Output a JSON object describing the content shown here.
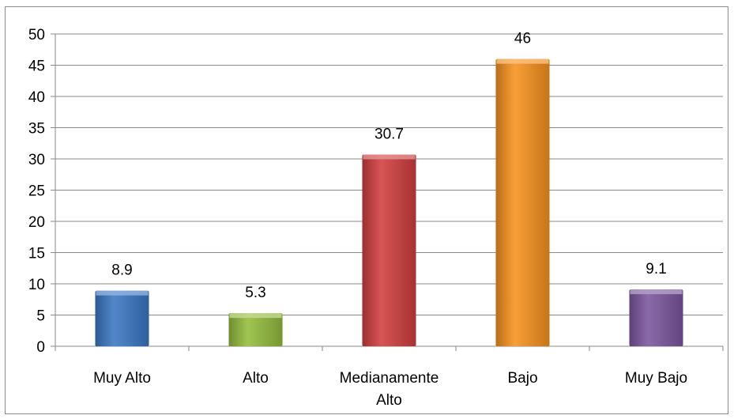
{
  "chart_data": {
    "type": "bar",
    "title": "",
    "xlabel": "",
    "ylabel": "",
    "categories": [
      "Muy Alto",
      "Alto",
      "Medianamente Alto",
      "Bajo",
      "Muy Bajo"
    ],
    "category_lines": [
      [
        "Muy Alto"
      ],
      [
        "Alto"
      ],
      [
        "Medianamente",
        "Alto"
      ],
      [
        "Bajo"
      ],
      [
        "Muy Bajo"
      ]
    ],
    "values": [
      8.9,
      5.3,
      30.7,
      46,
      9.1
    ],
    "data_labels": [
      "8.9",
      "5.3",
      "30.7",
      "46",
      "9.1"
    ],
    "colors": [
      "#3a78c4",
      "#94bd3c",
      "#d13e3e",
      "#f7921e",
      "#7b569e"
    ],
    "ylim": [
      0,
      50
    ],
    "yticks": [
      0,
      5,
      10,
      15,
      20,
      25,
      30,
      35,
      40,
      45,
      50
    ],
    "grid": true,
    "legend": "none"
  }
}
